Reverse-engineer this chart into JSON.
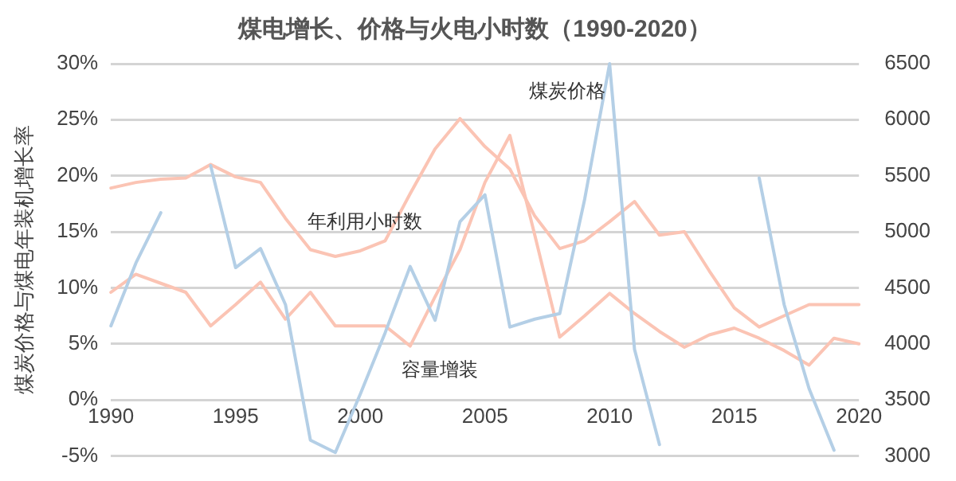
{
  "chart_data": {
    "type": "line",
    "title": "煤电增长、价格与火电小时数（1990-2020）",
    "ylabel": "煤炭价格与煤电年装机增长率",
    "x": [
      1990,
      1991,
      1992,
      1993,
      1994,
      1995,
      1996,
      1997,
      1998,
      1999,
      2000,
      2001,
      2002,
      2003,
      2004,
      2005,
      2006,
      2007,
      2008,
      2009,
      2010,
      2011,
      2012,
      2013,
      2014,
      2015,
      2016,
      2017,
      2018,
      2019,
      2020
    ],
    "xlim": [
      1990,
      2020
    ],
    "xticks": [
      1990,
      1995,
      2000,
      2005,
      2010,
      2015,
      2020
    ],
    "ylim": [
      -5,
      30
    ],
    "yticks": [
      {
        "value": -5,
        "label": "-5%"
      },
      {
        "value": 0,
        "label": "0%"
      },
      {
        "value": 5,
        "label": "5%"
      },
      {
        "value": 10,
        "label": "10%"
      },
      {
        "value": 15,
        "label": "15%"
      },
      {
        "value": 20,
        "label": "20%"
      },
      {
        "value": 25,
        "label": "25%"
      },
      {
        "value": 30,
        "label": "30%"
      }
    ],
    "y2lim": [
      3000,
      6500
    ],
    "y2ticks": [
      3000,
      3500,
      4000,
      4500,
      5000,
      5500,
      6000,
      6500
    ],
    "grid": "y",
    "legend": false,
    "marker": "none",
    "line_style": "solid",
    "series": [
      {
        "name": "煤炭价格",
        "color": "#b4cfe6",
        "values": [
          6.6,
          12.2,
          16.7,
          null,
          20.9,
          11.8,
          13.5,
          8.5,
          -3.6,
          -4.7,
          0.5,
          6,
          11.9,
          7.1,
          15.9,
          18.3,
          6.5,
          7.2,
          7.7,
          17.9,
          30,
          4.5,
          -4,
          null,
          null,
          null,
          19.8,
          8.5,
          1,
          -4.5,
          null
        ]
      },
      {
        "name": "年利用小时数",
        "color": "#fbc4b4",
        "axis": "y2",
        "values": [
          5390,
          5440,
          5470,
          5480,
          5600,
          5490,
          5440,
          5120,
          4840,
          4780,
          4830,
          4920,
          5340,
          5740,
          6010,
          5760,
          5560,
          5140,
          4850,
          4920,
          5090,
          5270,
          4970,
          5000,
          4650,
          4320,
          4150,
          4250,
          4350,
          4350,
          4350
        ]
      },
      {
        "name": "容量增装",
        "color": "#fbc4b4",
        "values": [
          9.6,
          11.2,
          10.4,
          9.6,
          6.6,
          8.5,
          10.5,
          7.2,
          9.6,
          6.6,
          6.6,
          6.6,
          4.8,
          9.2,
          13.4,
          19.4,
          23.6,
          14.7,
          5.6,
          7.5,
          9.5,
          7.7,
          6.1,
          4.7,
          5.8,
          6.4,
          5.5,
          4.4,
          3.1,
          5.5,
          5
        ]
      }
    ]
  }
}
